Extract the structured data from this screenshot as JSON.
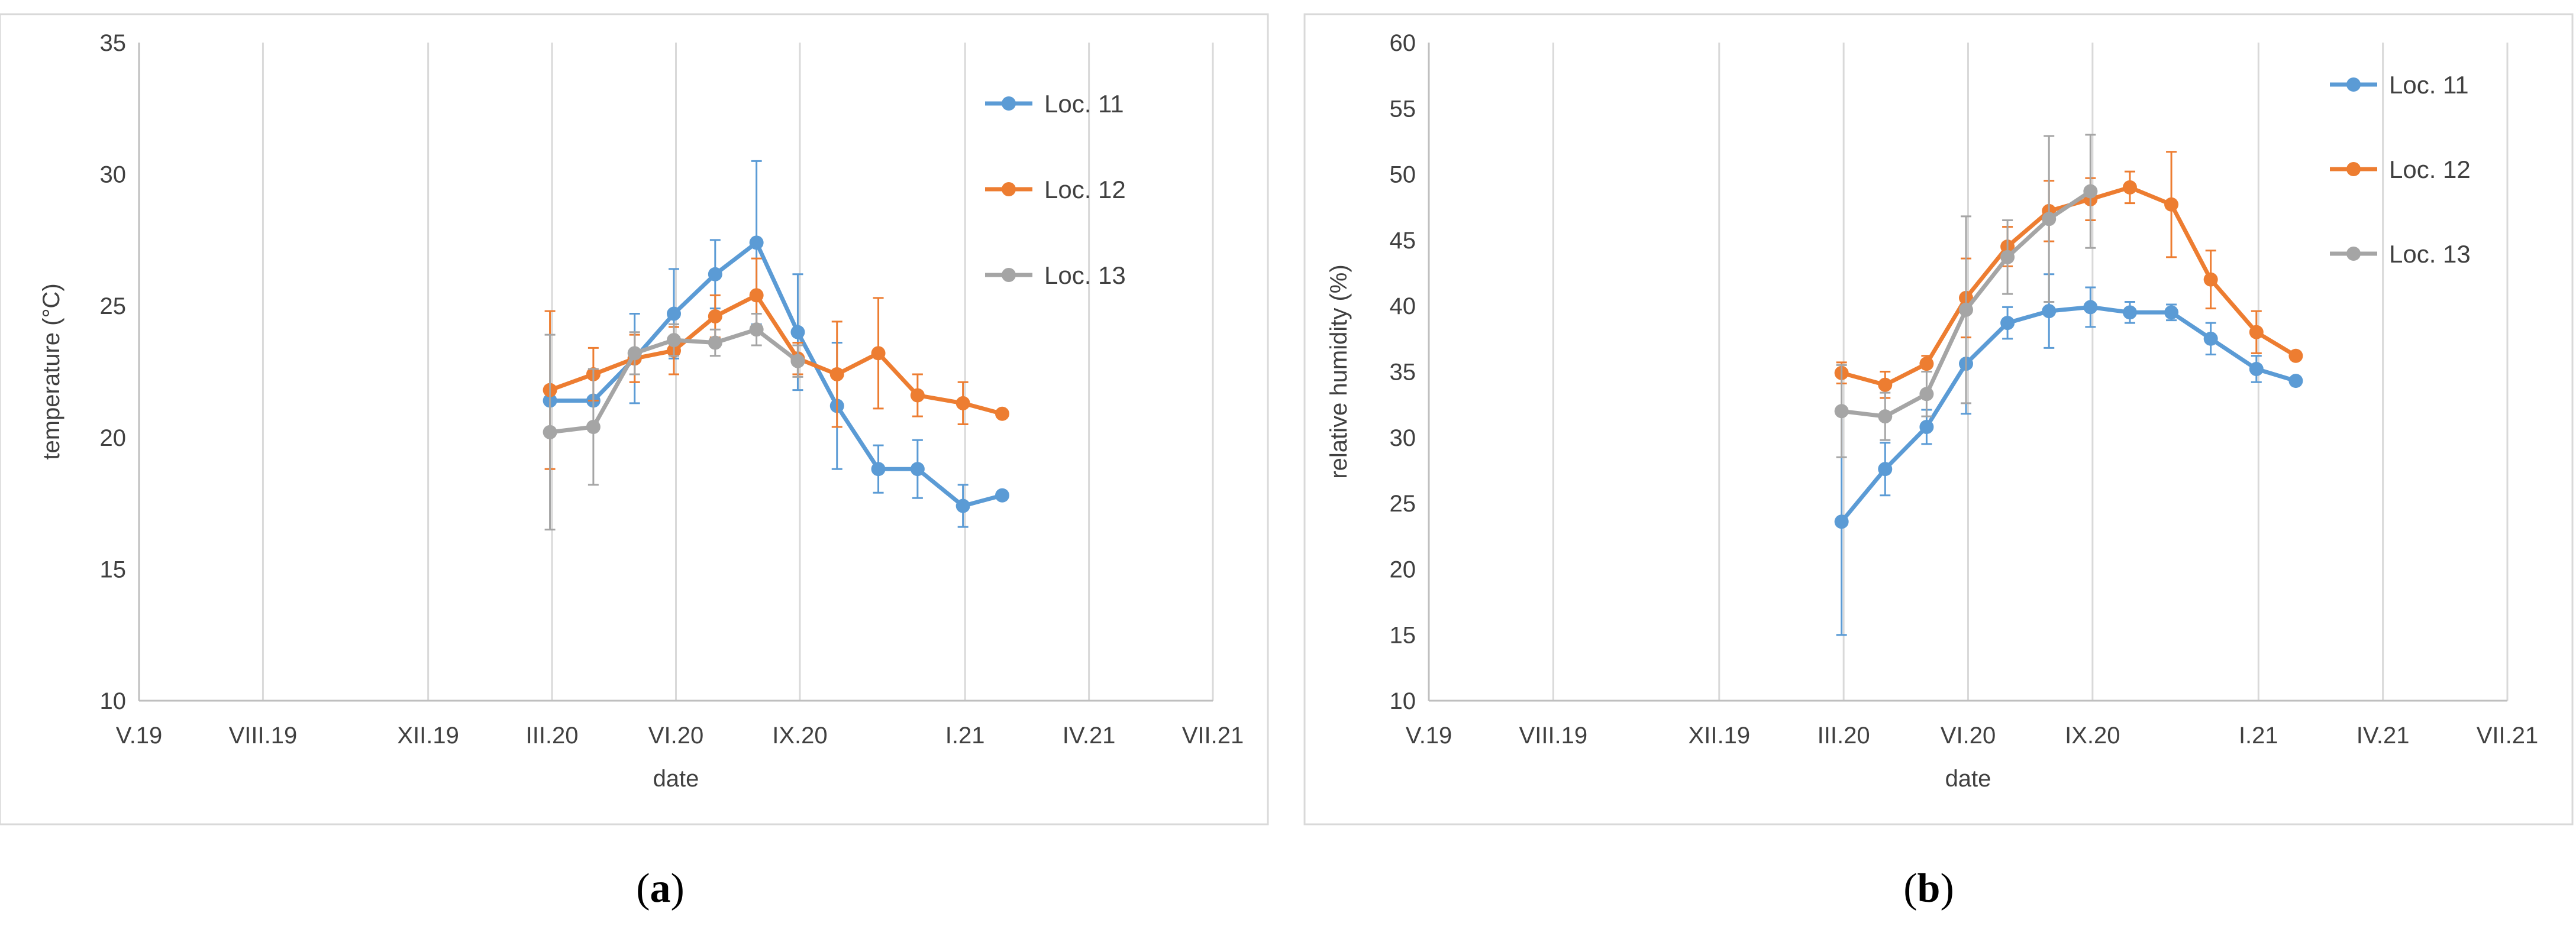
{
  "chart_data": [
    {
      "type": "line",
      "panel_label": "a",
      "xlabel": "date",
      "ylabel": "temperature (°C)",
      "ylim": [
        10,
        35
      ],
      "yticks": [
        10,
        15,
        20,
        25,
        30,
        35
      ],
      "xlim_month_index": [
        0,
        26
      ],
      "xticks": [
        {
          "label": "V.19",
          "month_index": 0
        },
        {
          "label": "VIII.19",
          "month_index": 3
        },
        {
          "label": "XII.19",
          "month_index": 7
        },
        {
          "label": "III.20",
          "month_index": 10
        },
        {
          "label": "VI.20",
          "month_index": 13
        },
        {
          "label": "IX.20",
          "month_index": 16
        },
        {
          "label": "I.21",
          "month_index": 20
        },
        {
          "label": "IV.21",
          "month_index": 23
        },
        {
          "label": "VII.21",
          "month_index": 26
        }
      ],
      "grid": "vertical",
      "legend_position": "top-right",
      "series": [
        {
          "name": "Loc. 11",
          "color": "#5b9bd5",
          "x": [
            9.95,
            11.0,
            12.0,
            12.95,
            13.95,
            14.95,
            15.95,
            16.9,
            17.9,
            18.85,
            19.95,
            20.9
          ],
          "y": [
            21.4,
            21.4,
            23.0,
            24.7,
            26.2,
            27.4,
            24.0,
            21.2,
            18.8,
            18.8,
            17.4,
            17.8
          ],
          "err": [
            null,
            null,
            1.7,
            1.7,
            1.3,
            3.1,
            2.2,
            2.4,
            0.9,
            1.1,
            0.8,
            null
          ]
        },
        {
          "name": "Loc. 12",
          "color": "#ed7d31",
          "x": [
            9.95,
            11.0,
            12.0,
            12.95,
            13.95,
            14.95,
            15.95,
            16.9,
            17.9,
            18.85,
            19.95,
            20.9
          ],
          "y": [
            21.8,
            22.4,
            23.0,
            23.3,
            24.6,
            25.4,
            23.0,
            22.4,
            23.2,
            21.6,
            21.3,
            20.9
          ],
          "err": [
            3.0,
            1.0,
            0.9,
            0.9,
            0.8,
            1.4,
            0.6,
            2.0,
            2.1,
            0.8,
            0.8,
            null
          ]
        },
        {
          "name": "Loc. 13",
          "color": "#a5a5a5",
          "x": [
            9.95,
            11.0,
            12.0,
            12.95,
            13.95,
            14.95,
            15.95
          ],
          "y": [
            20.2,
            20.4,
            23.2,
            23.7,
            23.6,
            24.1,
            22.9
          ],
          "err": [
            3.7,
            2.2,
            0.8,
            0.6,
            0.5,
            0.6,
            0.6
          ]
        }
      ]
    },
    {
      "type": "line",
      "panel_label": "b",
      "xlabel": "date",
      "ylabel": "relative humidity (%)",
      "ylim": [
        10,
        60
      ],
      "yticks": [
        10,
        15,
        20,
        25,
        30,
        35,
        40,
        45,
        50,
        55,
        60
      ],
      "xlim_month_index": [
        0,
        26
      ],
      "xticks": [
        {
          "label": "V.19",
          "month_index": 0
        },
        {
          "label": "VIII.19",
          "month_index": 3
        },
        {
          "label": "XII.19",
          "month_index": 7
        },
        {
          "label": "III.20",
          "month_index": 10
        },
        {
          "label": "VI.20",
          "month_index": 13
        },
        {
          "label": "IX.20",
          "month_index": 16
        },
        {
          "label": "I.21",
          "month_index": 20
        },
        {
          "label": "IV.21",
          "month_index": 23
        },
        {
          "label": "VII.21",
          "month_index": 26
        }
      ],
      "grid": "vertical",
      "legend_position": "top-right",
      "series": [
        {
          "name": "Loc. 11",
          "color": "#5b9bd5",
          "x": [
            9.95,
            11.0,
            12.0,
            12.95,
            13.95,
            14.95,
            15.95,
            16.9,
            17.9,
            18.85,
            19.95,
            20.9
          ],
          "y": [
            23.6,
            27.6,
            30.8,
            35.6,
            38.7,
            39.6,
            39.9,
            39.5,
            39.5,
            37.5,
            35.2,
            34.3
          ],
          "err": [
            8.6,
            2.0,
            1.3,
            3.8,
            1.2,
            2.8,
            1.5,
            0.8,
            0.6,
            1.2,
            1.0,
            null
          ]
        },
        {
          "name": "Loc. 12",
          "color": "#ed7d31",
          "x": [
            9.95,
            11.0,
            12.0,
            12.95,
            13.95,
            14.95,
            15.95,
            16.9,
            17.9,
            18.85,
            19.95,
            20.9
          ],
          "y": [
            34.9,
            34.0,
            35.6,
            40.6,
            44.5,
            47.2,
            48.1,
            49.0,
            47.7,
            42.0,
            38.0,
            36.2
          ],
          "err": [
            0.8,
            1.0,
            0.6,
            3.0,
            1.5,
            2.3,
            1.6,
            1.2,
            4.0,
            2.2,
            1.6,
            null
          ]
        },
        {
          "name": "Loc. 13",
          "color": "#a5a5a5",
          "x": [
            9.95,
            11.0,
            12.0,
            12.95,
            13.95,
            14.95,
            15.95
          ],
          "y": [
            32.0,
            31.6,
            33.3,
            39.7,
            43.7,
            46.6,
            48.7
          ],
          "err": [
            3.5,
            1.8,
            1.7,
            7.1,
            2.8,
            6.3,
            4.3
          ]
        }
      ]
    }
  ]
}
